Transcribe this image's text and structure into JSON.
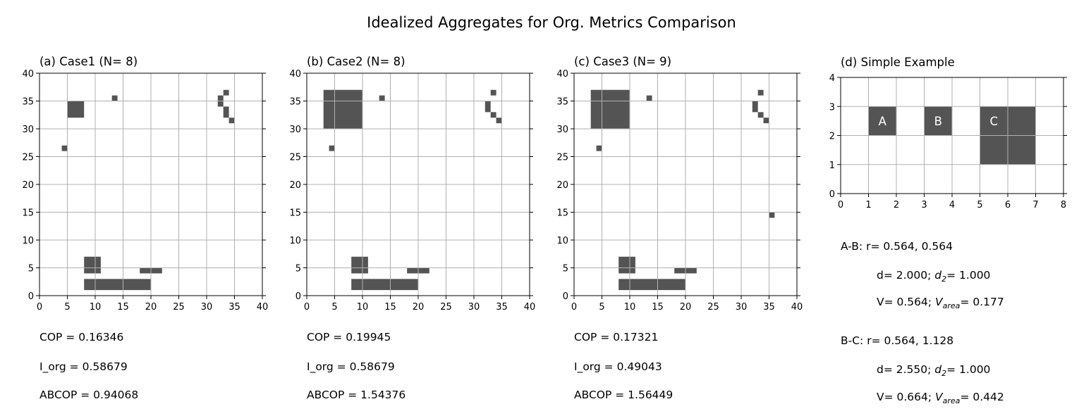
{
  "title": "Idealized Aggregates for Org. Metrics Comparison",
  "colors": {
    "cell": "#545454",
    "grid": "#b0b0b0",
    "label": "#ffffff"
  },
  "chart_data": [
    {
      "type": "heatmap",
      "title": "(a) Case1 (N= 8)",
      "xlim": [
        0,
        40
      ],
      "ylim": [
        0,
        40
      ],
      "xticks": [
        "0",
        "5",
        "10",
        "15",
        "20",
        "25",
        "30",
        "35",
        "40"
      ],
      "yticks": [
        "0",
        "5",
        "10",
        "15",
        "20",
        "25",
        "30",
        "35",
        "40"
      ],
      "grid": true,
      "cells": [
        [
          5,
          32,
          8,
          35
        ],
        [
          13,
          35,
          14,
          36
        ],
        [
          4,
          26,
          5,
          27
        ],
        [
          33,
          36,
          34,
          37
        ],
        [
          32,
          34,
          33,
          36
        ],
        [
          33,
          32,
          34,
          34
        ],
        [
          34,
          31,
          35,
          32
        ],
        [
          8,
          4,
          11,
          7
        ],
        [
          18,
          4,
          22,
          5
        ],
        [
          8,
          1,
          20,
          3
        ]
      ],
      "metrics": [
        "COP = 0.16346",
        "I_org = 0.58679",
        "ABCOP = 0.94068"
      ]
    },
    {
      "type": "heatmap",
      "title": "(b) Case2 (N= 8)",
      "xlim": [
        0,
        40
      ],
      "ylim": [
        0,
        40
      ],
      "xticks": [
        "0",
        "5",
        "10",
        "15",
        "20",
        "25",
        "30",
        "35",
        "40"
      ],
      "yticks": [
        "0",
        "5",
        "10",
        "15",
        "20",
        "25",
        "30",
        "35",
        "40"
      ],
      "grid": true,
      "cells": [
        [
          3,
          30,
          10,
          37
        ],
        [
          13,
          35,
          14,
          36
        ],
        [
          4,
          26,
          5,
          27
        ],
        [
          33,
          36,
          34,
          37
        ],
        [
          32,
          33,
          33,
          35
        ],
        [
          33,
          32,
          34,
          33
        ],
        [
          34,
          31,
          35,
          32
        ],
        [
          8,
          4,
          11,
          7
        ],
        [
          18,
          4,
          22,
          5
        ],
        [
          8,
          1,
          20,
          3
        ]
      ],
      "metrics": [
        "COP = 0.19945",
        "I_org = 0.58679",
        "ABCOP = 1.54376"
      ]
    },
    {
      "type": "heatmap",
      "title": "(c) Case3 (N= 9)",
      "xlim": [
        0,
        40
      ],
      "ylim": [
        0,
        40
      ],
      "xticks": [
        "0",
        "5",
        "10",
        "15",
        "20",
        "25",
        "30",
        "35",
        "40"
      ],
      "yticks": [
        "0",
        "5",
        "10",
        "15",
        "20",
        "25",
        "30",
        "35",
        "40"
      ],
      "grid": true,
      "cells": [
        [
          3,
          30,
          10,
          37
        ],
        [
          13,
          35,
          14,
          36
        ],
        [
          4,
          26,
          5,
          27
        ],
        [
          33,
          36,
          34,
          37
        ],
        [
          32,
          33,
          33,
          35
        ],
        [
          33,
          32,
          34,
          33
        ],
        [
          34,
          31,
          35,
          32
        ],
        [
          35,
          14,
          36,
          15
        ],
        [
          8,
          4,
          11,
          7
        ],
        [
          18,
          4,
          22,
          5
        ],
        [
          8,
          1,
          20,
          3
        ]
      ],
      "metrics": [
        "COP = 0.17321",
        "I_org = 0.49043",
        "ABCOP = 1.56449"
      ]
    },
    {
      "type": "heatmap",
      "title": "(d) Simple Example",
      "xlim": [
        0,
        8
      ],
      "ylim": [
        0,
        4
      ],
      "xticks": [
        "0",
        "1",
        "2",
        "3",
        "4",
        "5",
        "6",
        "7",
        "8"
      ],
      "yticks": [
        "0",
        "1",
        "2",
        "3",
        "4"
      ],
      "grid": true,
      "cells": [
        [
          1,
          2,
          2,
          3
        ],
        [
          3,
          2,
          4,
          3
        ],
        [
          5,
          1,
          7,
          3
        ]
      ],
      "cell_labels": [
        {
          "text": "A",
          "x": 1.5,
          "y": 2.5
        },
        {
          "text": "B",
          "x": 3.5,
          "y": 2.5
        },
        {
          "text": "C",
          "x": 5.5,
          "y": 2.5
        }
      ],
      "annotations": {
        "ab_line1": "A-B: r= 0.564, 0.564",
        "ab_line2_pre": "d= 2.000; ",
        "ab_line2_sym": "d",
        "ab_line2_sub": "2",
        "ab_line2_post": "= 1.000",
        "ab_line3_pre": "V= 0.564; ",
        "ab_line3_sym": "V",
        "ab_line3_sub": "area",
        "ab_line3_post": "= 0.177",
        "bc_line1": "B-C: r= 0.564, 1.128",
        "bc_line2_pre": "d= 2.550; ",
        "bc_line2_sym": "d",
        "bc_line2_sub": "2",
        "bc_line2_post": "= 1.000",
        "bc_line3_pre": "V= 0.664; ",
        "bc_line3_sym": "V",
        "bc_line3_sub": "area",
        "bc_line3_post": "= 0.442"
      }
    }
  ]
}
